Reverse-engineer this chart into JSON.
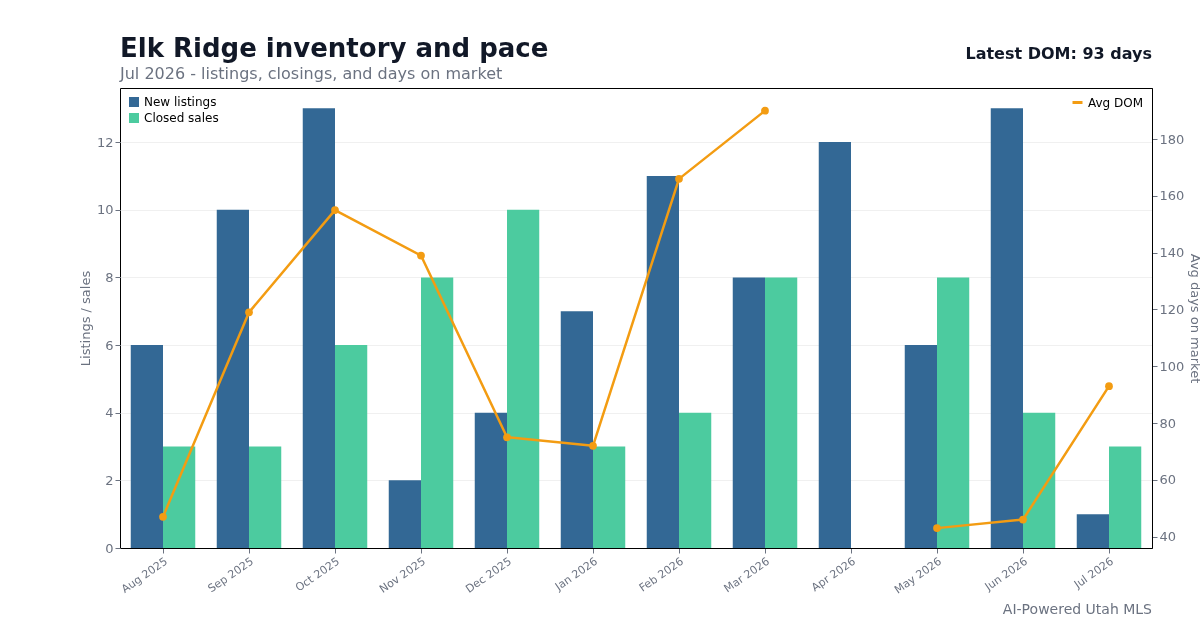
{
  "chart_data": {
    "type": "bar",
    "title": "Elk Ridge inventory and pace",
    "subtitle": "Jul 2026 - listings, closings, and days on market",
    "ylabel": "Listings / sales",
    "y2label": "Avg days on market",
    "categories": [
      "Aug 2025",
      "Sep 2025",
      "Oct 2025",
      "Nov 2025",
      "Dec 2025",
      "Jan 2026",
      "Feb 2026",
      "Mar 2026",
      "Apr 2026",
      "May 2026",
      "Jun 2026",
      "Jul 2026"
    ],
    "series": [
      {
        "name": "New listings",
        "color": "#336895",
        "values": [
          6,
          10,
          13,
          2,
          4,
          7,
          11,
          8,
          12,
          6,
          13,
          1
        ]
      },
      {
        "name": "Closed sales",
        "color": "#4ccb9f",
        "values": [
          3,
          3,
          6,
          8,
          10,
          3,
          4,
          8,
          0,
          8,
          4,
          3
        ]
      },
      {
        "name": "Avg DOM",
        "type": "line",
        "axis": "y2",
        "color": "#f39c12",
        "values": [
          47,
          119,
          155,
          139,
          75,
          72,
          166,
          190,
          null,
          43,
          46,
          93
        ]
      }
    ],
    "ylim": [
      0,
      13.6
    ],
    "yticks": [
      0,
      2,
      4,
      6,
      8,
      10,
      12
    ],
    "y2lim": [
      36,
      198
    ],
    "y2ticks": [
      40,
      60,
      80,
      100,
      120,
      140,
      160,
      180
    ],
    "grid": "y",
    "legend": "top",
    "marker": "circle",
    "annotations": [
      "Latest DOM: 93 days",
      "AI-Powered Utah MLS"
    ]
  }
}
